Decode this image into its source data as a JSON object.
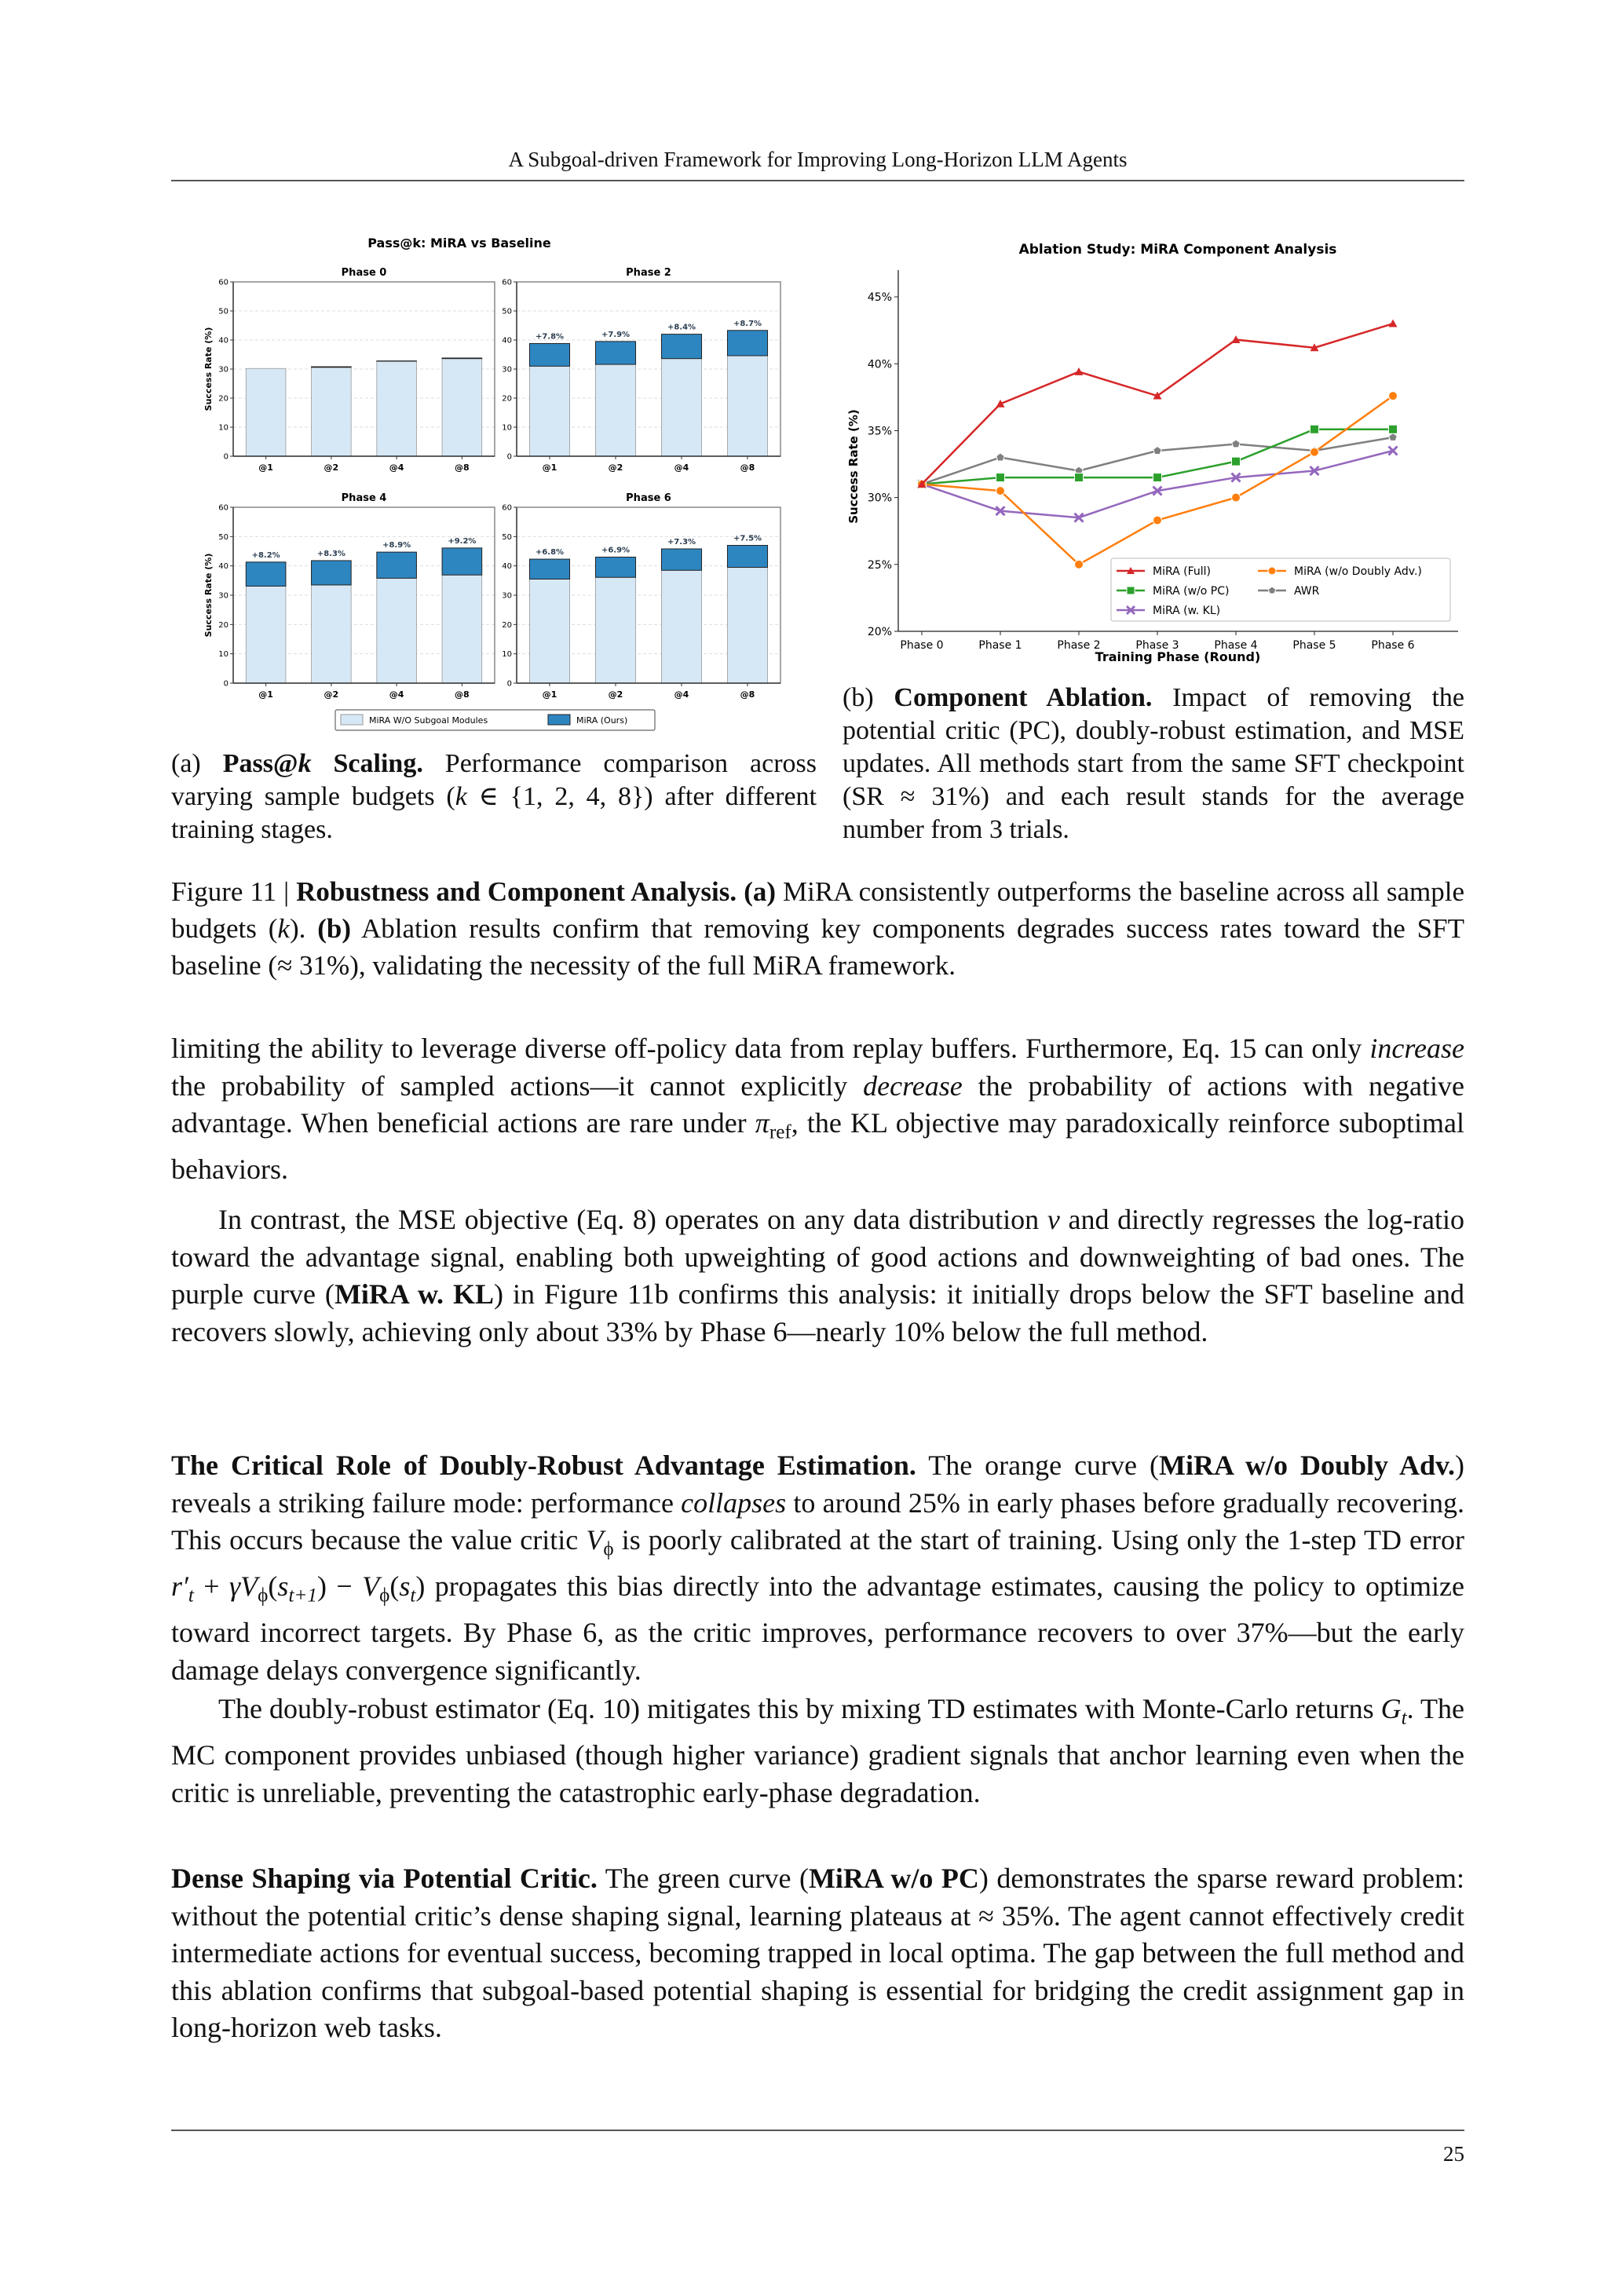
{
  "header": {
    "running_title": "A Subgoal-driven Framework for Improving Long-Horizon LLM Agents",
    "page_number": "25"
  },
  "chart_data": [
    {
      "type": "bar",
      "title": "Pass@k: MiRA vs Baseline",
      "ylabel": "Success Rate (%)",
      "ylim": [
        0,
        60
      ],
      "yticks": [
        "0",
        "10",
        "20",
        "30",
        "40",
        "50",
        "60"
      ],
      "categories": [
        "@1",
        "@2",
        "@4",
        "@8"
      ],
      "legend": {
        "placement": "bottom",
        "entries": [
          "MiRA W/O Subgoal Modules",
          "MiRA (Ours)"
        ]
      },
      "colors": {
        "baseline": "#d6e8f6",
        "mira": "#2e86c1",
        "label": "#2c3e50"
      },
      "grid": true,
      "stacked": true,
      "panels": [
        {
          "title": "Phase 0",
          "baseline": [
            30.2,
            30.6,
            32.7,
            33.6
          ],
          "mira": [
            30.2,
            30.8,
            32.8,
            33.8
          ],
          "gain_labels": [
            "",
            "",
            "",
            ""
          ]
        },
        {
          "title": "Phase 2",
          "baseline": [
            31.0,
            31.6,
            33.6,
            34.6
          ],
          "mira": [
            38.8,
            39.5,
            42.0,
            43.3
          ],
          "gain_labels": [
            "+7.8%",
            "+7.9%",
            "+8.4%",
            "+8.7%"
          ]
        },
        {
          "title": "Phase 4",
          "baseline": [
            33.1,
            33.5,
            35.8,
            36.9
          ],
          "mira": [
            41.3,
            41.8,
            44.7,
            46.1
          ],
          "gain_labels": [
            "+8.2%",
            "+8.3%",
            "+8.9%",
            "+9.2%"
          ]
        },
        {
          "title": "Phase 6",
          "baseline": [
            35.5,
            36.1,
            38.5,
            39.5
          ],
          "mira": [
            42.3,
            43.0,
            45.8,
            47.0
          ],
          "gain_labels": [
            "+6.8%",
            "+6.9%",
            "+7.3%",
            "+7.5%"
          ]
        }
      ]
    },
    {
      "type": "line",
      "title": "Ablation Study: MiRA Component Analysis",
      "xlabel": "Training Phase (Round)",
      "ylabel": "Success Rate (%)",
      "ylim": [
        20,
        47
      ],
      "yticks": [
        20,
        25,
        30,
        35,
        40,
        45
      ],
      "ytick_labels": [
        "20%",
        "25%",
        "30%",
        "35%",
        "40%",
        "45%"
      ],
      "categories": [
        "Phase 0",
        "Phase 1",
        "Phase 2",
        "Phase 3",
        "Phase 4",
        "Phase 5",
        "Phase 6"
      ],
      "legend": {
        "placement": "bottom-right"
      },
      "grid": false,
      "series": [
        {
          "name": "MiRA (Full)",
          "color": "#d62728",
          "marker": "triangle",
          "values": [
            31.0,
            37.0,
            39.4,
            37.6,
            41.8,
            41.2,
            43.0
          ]
        },
        {
          "name": "MiRA (w/o Doubly Adv.)",
          "color": "#ff7f0e",
          "marker": "circle",
          "values": [
            31.0,
            30.5,
            25.0,
            28.3,
            30.0,
            33.4,
            37.6
          ]
        },
        {
          "name": "MiRA (w/o PC)",
          "color": "#2ca02c",
          "marker": "square",
          "values": [
            31.0,
            31.5,
            31.5,
            31.5,
            32.7,
            35.1,
            35.1
          ]
        },
        {
          "name": "AWR",
          "color": "#7f7f7f",
          "marker": "pentagon",
          "values": [
            31.0,
            33.0,
            32.0,
            33.5,
            34.0,
            33.5,
            34.5
          ]
        },
        {
          "name": "MiRA (w. KL)",
          "color": "#9467bd",
          "marker": "x",
          "values": [
            31.0,
            29.0,
            28.5,
            30.5,
            31.5,
            32.0,
            33.5
          ]
        }
      ]
    }
  ],
  "captions": {
    "a": [
      [
        "(a) ",
        ""
      ],
      [
        "Pass@",
        "b"
      ],
      [
        "k",
        "b i"
      ],
      [
        " Scaling.",
        "b"
      ],
      [
        " Performance comparison across varying sample budgets (",
        ""
      ],
      [
        "k",
        "i"
      ],
      [
        " ∈ {1, 2, 4, 8}) after different training stages.",
        ""
      ]
    ],
    "b": [
      [
        "(b) ",
        ""
      ],
      [
        "Component Ablation.",
        "b"
      ],
      [
        " Impact of removing the potential critic (PC), doubly-robust estimation, and MSE updates. All methods start from the same SFT checkpoint (SR ≈ 31%) and each result stands for the average number from 3 trials.",
        ""
      ]
    ],
    "figure": [
      [
        "Figure 11 | ",
        ""
      ],
      [
        "Robustness and Component Analysis.",
        "b"
      ],
      [
        " ",
        ""
      ],
      [
        "(a)",
        "b"
      ],
      [
        " MiRA consistently outperforms the baseline across all sample budgets (",
        ""
      ],
      [
        "k",
        "i"
      ],
      [
        "). ",
        ""
      ],
      [
        "(b)",
        "b"
      ],
      [
        " Ablation results confirm that removing key components degrades success rates toward the SFT baseline (≈ 31%), validating the necessity of the full MiRA framework.",
        ""
      ]
    ]
  },
  "paragraphs": [
    [
      [
        "limiting the ability to leverage diverse off-policy data from replay buffers.  Furthermore, Eq. 15 can only ",
        ""
      ],
      [
        "increase",
        "i"
      ],
      [
        " the probability of sampled actions—it cannot explicitly ",
        ""
      ],
      [
        "decrease",
        "i"
      ],
      [
        " the probability of actions with negative advantage. When beneficial actions are rare under ",
        ""
      ],
      [
        "π",
        "i"
      ],
      [
        "ref",
        "sub"
      ],
      [
        ", the KL objective may paradoxically reinforce suboptimal behaviors.",
        ""
      ]
    ],
    [
      [
        "In contrast, the MSE objective (Eq. 8) operates on any data distribution ",
        ""
      ],
      [
        "ν",
        "i"
      ],
      [
        " and directly regresses the log-ratio toward the advantage signal, enabling both upweighting of good actions and downweighting of bad ones. The purple curve (",
        ""
      ],
      [
        "MiRA w. KL",
        "b"
      ],
      [
        ") in Figure 11b confirms this analysis: it initially drops below the SFT baseline and recovers slowly, achieving only about 33% by Phase 6—nearly 10% below the full method.",
        ""
      ]
    ],
    [
      [
        "The Critical Role of Doubly-Robust Advantage Estimation.",
        "b"
      ],
      [
        "    The orange curve (",
        ""
      ],
      [
        "MiRA w/o Doubly Adv.",
        "b"
      ],
      [
        ") reveals a striking failure mode: performance ",
        ""
      ],
      [
        "collapses",
        "i"
      ],
      [
        " to around 25% in early phases before gradually recovering. This occurs because the value critic ",
        ""
      ],
      [
        "V",
        "i"
      ],
      [
        "ϕ",
        "sub"
      ],
      [
        " is poorly calibrated at the start of training. Using only the 1-step TD error ",
        ""
      ],
      [
        "r′",
        "i"
      ],
      [
        "t",
        "sub i"
      ],
      [
        " + ",
        ""
      ],
      [
        "γV",
        "i"
      ],
      [
        "ϕ",
        "sub"
      ],
      [
        "(",
        ""
      ],
      [
        "s",
        "i"
      ],
      [
        "t+1",
        "sub i"
      ],
      [
        ") − ",
        ""
      ],
      [
        "V",
        "i"
      ],
      [
        "ϕ",
        "sub"
      ],
      [
        "(",
        ""
      ],
      [
        "s",
        "i"
      ],
      [
        "t",
        "sub i"
      ],
      [
        ") propagates this bias directly into the advantage estimates, causing the policy to optimize toward incorrect targets. By Phase 6, as the critic improves, performance recovers to over 37%—but the early damage delays convergence significantly.",
        ""
      ]
    ],
    [
      [
        "The doubly-robust estimator (Eq. 10) mitigates this by mixing TD estimates with Monte-Carlo returns ",
        ""
      ],
      [
        "G",
        "i"
      ],
      [
        "t",
        "sub i"
      ],
      [
        ". The MC component provides unbiased (though higher variance) gradient signals that anchor learning even when the critic is unreliable, preventing the catastrophic early-phase degradation.",
        ""
      ]
    ],
    [
      [
        "Dense Shaping via Potential Critic.",
        "b"
      ],
      [
        "    The green curve (",
        ""
      ],
      [
        "MiRA w/o PC",
        "b"
      ],
      [
        ") demonstrates the sparse reward problem: without the potential critic’s dense shaping signal, learning plateaus at ≈ 35%. The agent cannot effectively credit intermediate actions for eventual success, becoming trapped in local optima. The gap between the full method and this ablation confirms that subgoal-based potential shaping is essential for bridging the credit assignment gap in long-horizon web tasks.",
        ""
      ]
    ]
  ]
}
